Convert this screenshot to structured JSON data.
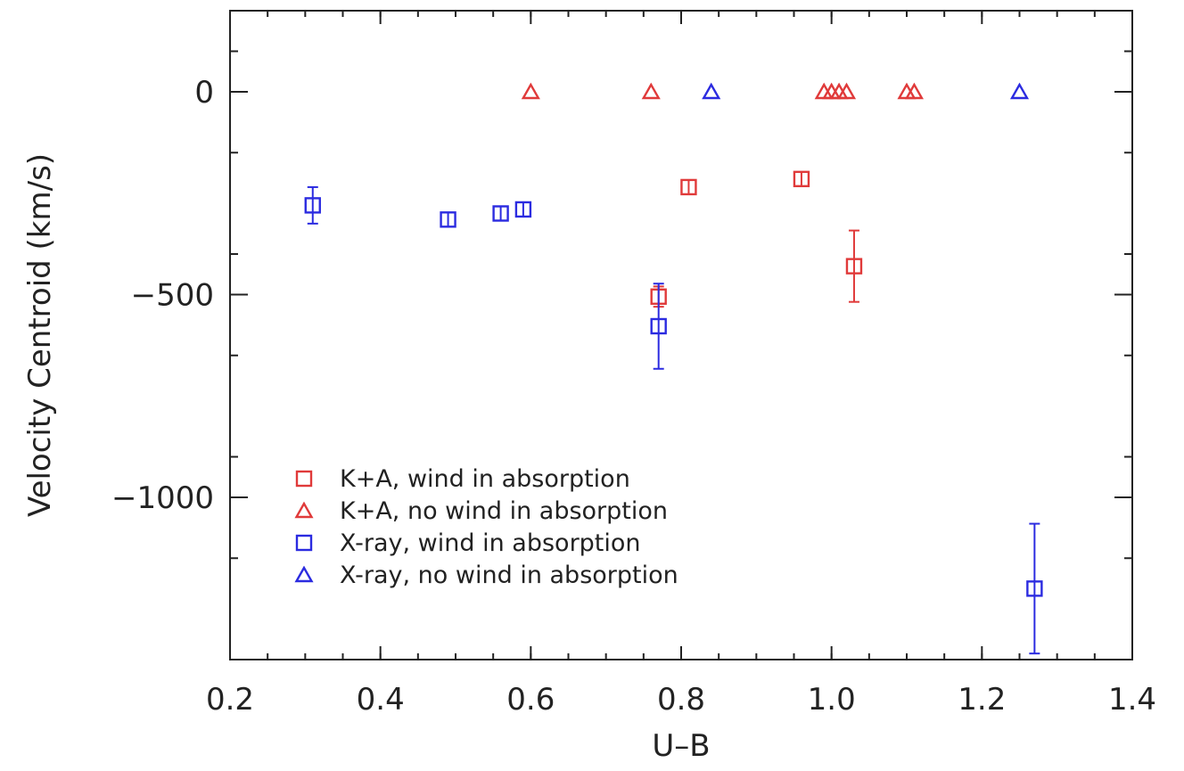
{
  "chart_data": {
    "type": "scatter",
    "title": "",
    "xlabel": "U–B",
    "ylabel": "Velocity Centroid (km/s)",
    "xlim": [
      0.2,
      1.4
    ],
    "ylim": [
      -1400,
      200
    ],
    "x_ticks": [
      {
        "value": 0.2,
        "label": "0.2"
      },
      {
        "value": 0.4,
        "label": "0.4"
      },
      {
        "value": 0.6,
        "label": "0.6"
      },
      {
        "value": 0.8,
        "label": "0.8"
      },
      {
        "value": 1.0,
        "label": "1.0"
      },
      {
        "value": 1.2,
        "label": "1.2"
      },
      {
        "value": 1.4,
        "label": "1.4"
      }
    ],
    "y_ticks": [
      {
        "value": 0,
        "label": "0"
      },
      {
        "value": -500,
        "label": "−500"
      },
      {
        "value": -1000,
        "label": "−1000"
      }
    ],
    "x_minor_step": 0.05,
    "y_minor_step": 250,
    "grid": false,
    "legend_position": "bottom-left",
    "series": [
      {
        "name": "K+A, wind in absorption",
        "marker": "square",
        "color": "#e03a3a",
        "points": [
          {
            "x": 0.77,
            "y": -505,
            "err": 25
          },
          {
            "x": 0.81,
            "y": -235,
            "err": 0
          },
          {
            "x": 0.96,
            "y": -215,
            "err": 0
          },
          {
            "x": 1.03,
            "y": -430,
            "err": 88
          }
        ]
      },
      {
        "name": "K+A, no wind in absorption",
        "marker": "triangle",
        "color": "#e03a3a",
        "points": [
          {
            "x": 0.6,
            "y": 0
          },
          {
            "x": 0.76,
            "y": 0
          },
          {
            "x": 0.99,
            "y": 0
          },
          {
            "x": 1.0,
            "y": 0
          },
          {
            "x": 1.01,
            "y": 0
          },
          {
            "x": 1.02,
            "y": 0
          },
          {
            "x": 1.1,
            "y": 0
          },
          {
            "x": 1.11,
            "y": 0
          }
        ]
      },
      {
        "name": "X-ray, wind in absorption",
        "marker": "square",
        "color": "#2b2be0",
        "points": [
          {
            "x": 0.31,
            "y": -280,
            "err": 45
          },
          {
            "x": 0.49,
            "y": -315,
            "err": 0
          },
          {
            "x": 0.56,
            "y": -300,
            "err": 0
          },
          {
            "x": 0.59,
            "y": -290,
            "err": 0
          },
          {
            "x": 0.77,
            "y": -578,
            "err": 105
          },
          {
            "x": 1.27,
            "y": -1225,
            "err": 160
          }
        ]
      },
      {
        "name": "X-ray, no wind in absorption",
        "marker": "triangle",
        "color": "#2b2be0",
        "points": [
          {
            "x": 0.84,
            "y": 0
          },
          {
            "x": 1.25,
            "y": 0
          }
        ]
      }
    ]
  }
}
